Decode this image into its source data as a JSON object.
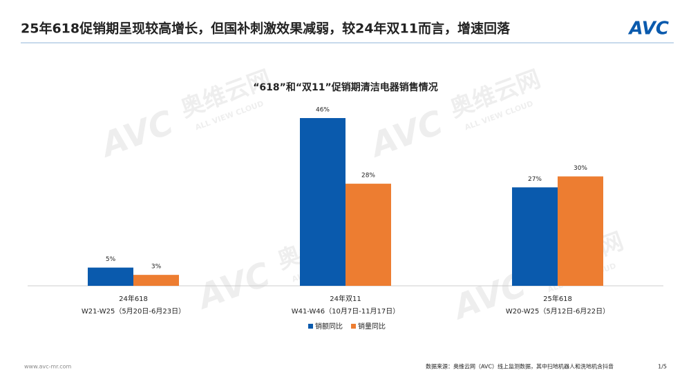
{
  "header": {
    "title": "25年618促销期呈现较高增长，但国补刺激效果减弱，较24年双11而言，增速回落",
    "logo": "AVC"
  },
  "watermark": {
    "logo": "AVC",
    "name": "奥维云网",
    "tagline": "ALL VIEW CLOUD"
  },
  "chart_data": {
    "type": "bar",
    "title": "“618”和“双11”促销期清洁电器销售情况",
    "categories": [
      "24年618",
      "24年双11",
      "25年618"
    ],
    "category_periods": [
      "W21-W25（5月20日-6月23日）",
      "W41-W46（10月7日-11月17日）",
      "W20-W25（5月12日-6月22日）"
    ],
    "series": [
      {
        "name": "销额同比",
        "color": "#0a5aad",
        "values": [
          5,
          46,
          27
        ],
        "value_labels": [
          "5%",
          "46%",
          "27%"
        ]
      },
      {
        "name": "销量同比",
        "color": "#ed7d31",
        "values": [
          3,
          28,
          30
        ],
        "value_labels": [
          "3%",
          "28%",
          "30%"
        ]
      }
    ]
  },
  "footer": {
    "website": "www.avc-mr.com",
    "source": "数据来源：奥维云网（AVC）线上监测数据，其中扫地机器人和洗地机含抖音",
    "page": "1/5"
  }
}
